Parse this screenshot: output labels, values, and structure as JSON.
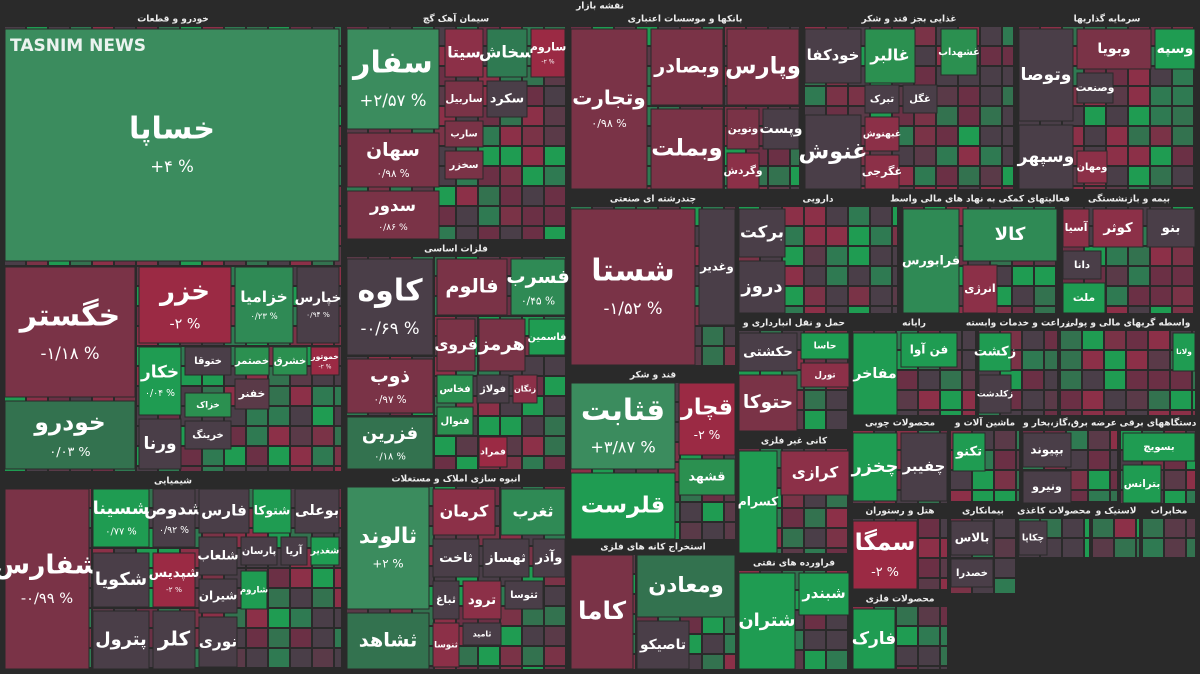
{
  "title": "نقشه بازار",
  "watermark": "TASNIM NEWS",
  "sectors": [
    {
      "title": "خودرو و قطعات",
      "tiles": [
        {
          "name": "خساپا",
          "change": "+۴ %",
          "color": "#3b8c5e"
        },
        {
          "name": "خگستر",
          "change": "-۱/۱۸ %",
          "color": "#7a3347"
        },
        {
          "name": "خزر",
          "change": "-۲ %",
          "color": "#9b2a44"
        },
        {
          "name": "خزامیا",
          "change": "۰/۲۳ %",
          "color": "#2f8a55"
        },
        {
          "name": "خپارس",
          "change": "۰/۹۴ %",
          "color": "#4a3e48"
        },
        {
          "name": "خودرو",
          "change": "۰/۰۳ %",
          "color": "#33724f"
        },
        {
          "name": "خکار",
          "change": "۰/۰۴ %",
          "color": "#1f9c52"
        },
        {
          "name": "خموتور",
          "change": "-۲ %",
          "color": "#9b2a44"
        },
        {
          "name": "خشرق",
          "color": "#2b9050"
        },
        {
          "name": "خصتمر",
          "color": "#2b9050"
        },
        {
          "name": "ختوقا",
          "color": "#4a3e48"
        },
        {
          "name": "خفنر",
          "color": "#5a3a48"
        },
        {
          "name": "خزاک",
          "color": "#2b9050"
        },
        {
          "name": "خرینگ",
          "color": "#4a3e48"
        },
        {
          "name": "ورنا",
          "color": "#4a3e48"
        }
      ]
    },
    {
      "title": "سیمان آهک گچ",
      "tiles": [
        {
          "name": "سفار",
          "change": "+۲/۵۷ %",
          "color": "#3b8c5e"
        },
        {
          "name": "سیتا",
          "color": "#8c3048"
        },
        {
          "name": "سخاش",
          "color": "#2f7a52"
        },
        {
          "name": "ساروم",
          "change": "-۲ %",
          "color": "#9b2a44"
        },
        {
          "name": "سهان",
          "change": "۰/۹۸ %",
          "color": "#7a3347"
        },
        {
          "name": "سدور",
          "change": "۰/۸۶ %",
          "color": "#7a3347"
        },
        {
          "name": "ساربیل",
          "color": "#7a3347"
        },
        {
          "name": "سکرد",
          "color": "#4a3e48"
        },
        {
          "name": "سارب",
          "color": "#7a3347"
        },
        {
          "name": "سخزر",
          "color": "#7a3347"
        }
      ]
    },
    {
      "title": "فلزات اساسی",
      "tiles": [
        {
          "name": "کاوه",
          "change": "-۰/۶۹ %",
          "color": "#4a3e48"
        },
        {
          "name": "فالوم",
          "color": "#7a3347"
        },
        {
          "name": "فسرب",
          "change": "۰/۴۵ %",
          "color": "#2f8a55"
        },
        {
          "name": "ذوب",
          "change": "۰/۹۷ %",
          "color": "#7a3347"
        },
        {
          "name": "فزرین",
          "change": "۰/۱۸ %",
          "color": "#33724f"
        },
        {
          "name": "فروی",
          "color": "#7a3347"
        },
        {
          "name": "هرمز",
          "color": "#7a3347"
        },
        {
          "name": "فاسمین",
          "color": "#1f9c52"
        },
        {
          "name": "فخاس",
          "color": "#2b9050"
        },
        {
          "name": "فولاژ",
          "color": "#4a3e48"
        },
        {
          "name": "زنگان",
          "color": "#8c3048"
        },
        {
          "name": "فنوال",
          "color": "#2b9050"
        },
        {
          "name": "فمراد",
          "color": "#9b2a44"
        }
      ]
    },
    {
      "title": "شیمیایی",
      "tiles": [
        {
          "name": "شفارس",
          "change": "-۰/۹۹ %",
          "color": "#7a3347"
        },
        {
          "name": "شسینا",
          "change": "۰/۷۷ %",
          "color": "#1f9c52"
        },
        {
          "name": "شدوص",
          "change": "۰/۹۲ %",
          "color": "#4a3e48"
        },
        {
          "name": "فارس",
          "color": "#4a3e48"
        },
        {
          "name": "شتوکا",
          "color": "#1f9c52"
        },
        {
          "name": "بوعلی",
          "color": "#4a3e48"
        },
        {
          "name": "شکویا",
          "color": "#4a3e48"
        },
        {
          "name": "شپدیس",
          "change": "-۲ %",
          "color": "#9b2a44"
        },
        {
          "name": "پترول",
          "color": "#4a3e48"
        },
        {
          "name": "کلر",
          "color": "#4a3e48"
        },
        {
          "name": "شغدیر",
          "color": "#1f9c52"
        },
        {
          "name": "آریا",
          "color": "#4a3e48"
        },
        {
          "name": "پارسان",
          "color": "#4a3e48"
        },
        {
          "name": "شلعاب",
          "color": "#4a3e48"
        },
        {
          "name": "شیران",
          "color": "#4a3e48"
        },
        {
          "name": "نوری",
          "color": "#4a3e48"
        },
        {
          "name": "شاروم",
          "color": "#1f9c52"
        }
      ]
    },
    {
      "title": "انبوه سازی املاک و مستغلات",
      "tiles": [
        {
          "name": "ثالوند",
          "change": "+۲ %",
          "color": "#3b8c5e"
        },
        {
          "name": "ثشاهد",
          "color": "#33724f"
        },
        {
          "name": "کرمان",
          "color": "#8c3048"
        },
        {
          "name": "ثغرب",
          "color": "#2f8a55"
        },
        {
          "name": "ثاخت",
          "color": "#4a3e48"
        },
        {
          "name": "ثهساز",
          "color": "#4a3e48"
        },
        {
          "name": "وآذر",
          "color": "#4a3e48"
        },
        {
          "name": "ثباغ",
          "color": "#4a3e48"
        },
        {
          "name": "ترود",
          "color": "#8c3048"
        },
        {
          "name": "ثتوسا",
          "color": "#4a3e48"
        },
        {
          "name": "ثامید",
          "color": "#4a3e48"
        },
        {
          "name": "ثنوسا",
          "color": "#8c3048"
        }
      ]
    },
    {
      "title": "بانکها و موسسات اعتباری",
      "tiles": [
        {
          "name": "وتجارت",
          "change": "۰/۹۸ %",
          "color": "#7a3347"
        },
        {
          "name": "وبصادر",
          "color": "#7a3347"
        },
        {
          "name": "وپارس",
          "color": "#7a3347"
        },
        {
          "name": "وبملت",
          "color": "#7a3347"
        },
        {
          "name": "ونوین",
          "color": "#7a3347"
        },
        {
          "name": "وپست",
          "color": "#4a3e48"
        },
        {
          "name": "وگردش",
          "color": "#8c3048"
        }
      ]
    },
    {
      "title": "چندرشته ای صنعتی",
      "tiles": [
        {
          "name": "شستا",
          "change": "-۱/۵۲ %",
          "color": "#7a3347"
        },
        {
          "name": "وغدیر",
          "color": "#4a3e48"
        }
      ]
    },
    {
      "title": "قند و شکر",
      "tiles": [
        {
          "name": "قثابت",
          "change": "+۳/۸۷ %",
          "color": "#3b8c5e"
        },
        {
          "name": "قچار",
          "change": "-۲ %",
          "color": "#9b2a44"
        },
        {
          "name": "قشهد",
          "color": "#2b9050"
        },
        {
          "name": "قلرست",
          "color": "#1f9c52"
        }
      ]
    },
    {
      "title": "استخراج کانه های فلزی",
      "tiles": [
        {
          "name": "کاما",
          "color": "#7a3347"
        },
        {
          "name": "ومعادن",
          "color": "#33724f"
        },
        {
          "name": "تاصیکو",
          "color": "#4a3e48"
        }
      ]
    },
    {
      "title": "غذایی بجز قند و شکر",
      "tiles": [
        {
          "name": "خودکفا",
          "color": "#4a3e48"
        },
        {
          "name": "غالبر",
          "color": "#2b9050"
        },
        {
          "name": "غشهداب",
          "color": "#2b9050"
        },
        {
          "name": "غنوش",
          "color": "#4a3e48"
        },
        {
          "name": "تبرک",
          "color": "#4a3e48"
        },
        {
          "name": "غگل",
          "color": "#4a3e48"
        },
        {
          "name": "غبهنوش",
          "color": "#8c3048"
        },
        {
          "name": "غگرجی",
          "color": "#8c3048"
        }
      ]
    },
    {
      "title": "سرمایه گذاریها",
      "tiles": [
        {
          "name": "وتوصا",
          "color": "#4a3e48"
        },
        {
          "name": "وسپهر",
          "color": "#4a3e48"
        },
        {
          "name": "وبویا",
          "color": "#7a3347"
        },
        {
          "name": "وسپه",
          "color": "#1f9c52"
        },
        {
          "name": "وصنعت",
          "color": "#4a3e48"
        },
        {
          "name": "ومهان",
          "color": "#8c3048"
        }
      ]
    },
    {
      "title": "دارویی",
      "tiles": [
        {
          "name": "برکت",
          "color": "#4a3e48"
        },
        {
          "name": "دروز",
          "color": "#4a3e48"
        }
      ]
    },
    {
      "title": "فعالیتهای کمکی به نهاد های مالی واسط",
      "tiles": [
        {
          "name": "فرابورس",
          "color": "#2f8a55"
        },
        {
          "name": "کالا",
          "color": "#2f8a55"
        },
        {
          "name": "انرژی",
          "color": "#8c3048"
        }
      ]
    },
    {
      "title": "بیمه و بازنشستگی",
      "tiles": [
        {
          "name": "آسیا",
          "color": "#8c3048"
        },
        {
          "name": "کوثر",
          "color": "#8c3048"
        },
        {
          "name": "بنو",
          "color": "#4a3e48"
        },
        {
          "name": "دانا",
          "color": "#4a3e48"
        },
        {
          "name": "ملت",
          "color": "#1f9c52"
        }
      ]
    },
    {
      "title": "حمل و نقل انبارداری و",
      "tiles": [
        {
          "name": "حکشتی",
          "color": "#4a3e48"
        },
        {
          "name": "حاسا",
          "color": "#1f9c52"
        },
        {
          "name": "تورل",
          "color": "#8c3048"
        },
        {
          "name": "حتوکا",
          "color": "#7a3347"
        }
      ]
    },
    {
      "title": "رایانه",
      "tiles": [
        {
          "name": "فن آوا",
          "color": "#1f9c52"
        },
        {
          "name": "مفاخر",
          "color": "#1f9c52"
        }
      ]
    },
    {
      "title": "زراعت و خدمات وابسته",
      "tiles": [
        {
          "name": "زکشت",
          "color": "#1f9c52"
        },
        {
          "name": "زکلدشت",
          "color": "#4a3e48"
        }
      ]
    },
    {
      "title": "واسطه گریهای مالی و پولی",
      "tiles": [
        {
          "name": "ولانا",
          "color": "#1f9c52"
        }
      ]
    },
    {
      "title": "کانی غیر فلزی",
      "tiles": [
        {
          "name": "کسرام",
          "color": "#1f9c52"
        },
        {
          "name": "کرازی",
          "color": "#8c3048"
        }
      ]
    },
    {
      "title": "محصولات چوبی",
      "tiles": [
        {
          "name": "چخزر",
          "color": "#1f9c52"
        },
        {
          "name": "چفیبر",
          "color": "#4a3e48"
        }
      ]
    },
    {
      "title": "ماشین آلات و",
      "tiles": [
        {
          "name": "تکنو",
          "color": "#1f9c52"
        }
      ]
    },
    {
      "title": "عرضه برق،گاز،بخار و",
      "tiles": [
        {
          "name": "بپیوند",
          "color": "#4a3e48"
        },
        {
          "name": "ونیرو",
          "color": "#4a3e48"
        }
      ]
    },
    {
      "title": "دستگاههای برقی",
      "tiles": [
        {
          "name": "بسویچ",
          "color": "#1f9c52"
        },
        {
          "name": "بترانس",
          "color": "#1f9c52"
        }
      ]
    },
    {
      "title": "فراورده های نفتی",
      "tiles": [
        {
          "name": "شتران",
          "color": "#1f9c52"
        },
        {
          "name": "شبندر",
          "color": "#1f9c52"
        }
      ]
    },
    {
      "title": "هتل و رستوران",
      "tiles": [
        {
          "name": "سمگا",
          "change": "-۲ %",
          "color": "#9b2a44"
        }
      ]
    },
    {
      "title": "محصولات فلزی",
      "tiles": [
        {
          "name": "فارک",
          "color": "#1f9c52"
        }
      ]
    },
    {
      "title": "بیمانکاری",
      "tiles": [
        {
          "name": "بالاس",
          "color": "#4a3e48"
        },
        {
          "name": "خصدرا",
          "color": "#4a3e48"
        }
      ]
    },
    {
      "title": "محصولات کاغذی",
      "tiles": [
        {
          "name": "چکاپا",
          "color": "#4a3e48"
        }
      ]
    },
    {
      "title": "لاستیک و",
      "tiles": []
    },
    {
      "title": "مخابرات",
      "tiles": []
    }
  ]
}
